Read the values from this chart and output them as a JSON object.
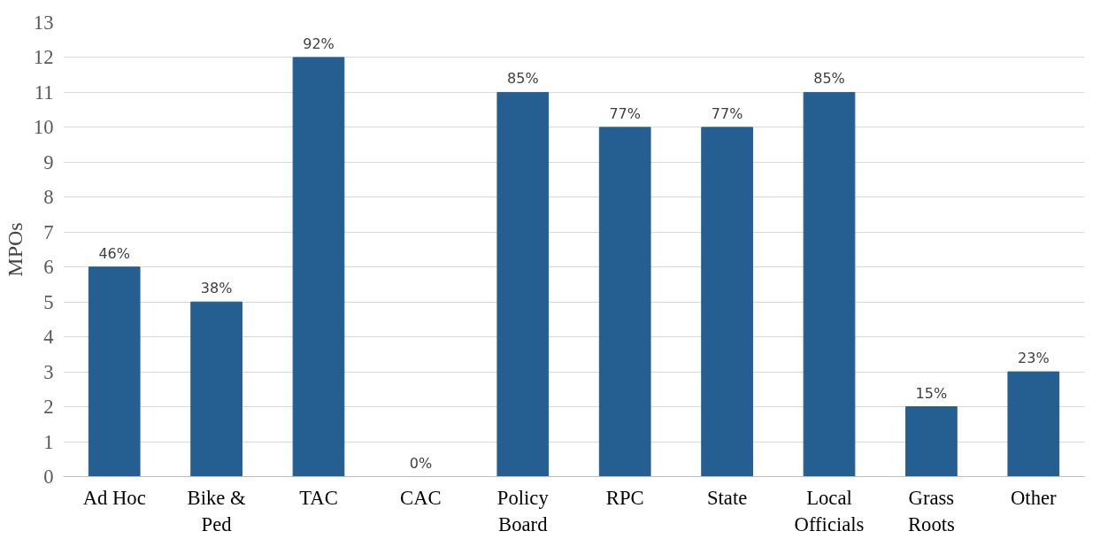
{
  "chart_data": {
    "type": "bar",
    "ylabel": "MPOs",
    "categories": [
      "Ad Hoc",
      "Bike & Ped",
      "TAC",
      "CAC",
      "Policy Board",
      "RPC",
      "State",
      "Local Officials",
      "Grass Roots",
      "Other"
    ],
    "values": [
      6,
      5,
      12,
      0,
      11,
      10,
      10,
      11,
      2,
      3
    ],
    "annotations": [
      {
        "text": "46%",
        "x": "Ad Hoc",
        "y": 6
      },
      {
        "text": "38%",
        "x": "Bike & Ped",
        "y": 5
      },
      {
        "text": "92%",
        "x": "TAC",
        "y": 12
      },
      {
        "text": "0%",
        "x": "CAC",
        "y": 0
      },
      {
        "text": "85%",
        "x": "Policy Board",
        "y": 11
      },
      {
        "text": "77%",
        "x": "RPC",
        "y": 10
      },
      {
        "text": "77%",
        "x": "State",
        "y": 10
      },
      {
        "text": "85%",
        "x": "Local Officials",
        "y": 11
      },
      {
        "text": "15%",
        "x": "Grass Roots",
        "y": 2
      },
      {
        "text": "23%",
        "x": "Other",
        "y": 3
      }
    ],
    "color": "#255e91",
    "ylim": [
      0,
      13
    ],
    "yticks": [
      0,
      1,
      2,
      3,
      4,
      5,
      6,
      7,
      8,
      9,
      10,
      11,
      12,
      13
    ],
    "grid": "y"
  }
}
